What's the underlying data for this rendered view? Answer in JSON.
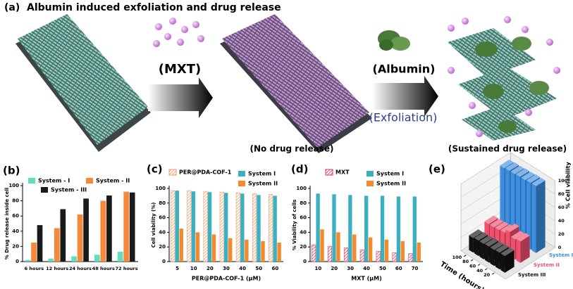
{
  "panel_a": {
    "label": "(a)",
    "title": "Albumin induced exfoliation and drug release",
    "drug_label": "(MXT)",
    "albumin_label": "(Albumin)",
    "exfoliation_label": "(Exfoliation)",
    "caption_middle": "(No drug release)",
    "caption_right": "(Sustained drug release)"
  },
  "chart_data": [
    {
      "type": "bar",
      "label": "(b)",
      "ylabel": "% Drug release inside cell",
      "categories": [
        "6 hours",
        "12 hours",
        "24 hours",
        "48 hours",
        "72 hours"
      ],
      "series": [
        {
          "name": "System - I",
          "color": "#5ee0c0",
          "values": [
            2,
            4,
            7,
            9,
            13
          ]
        },
        {
          "name": "System - II",
          "color": "#f7883a",
          "values": [
            25,
            44,
            62,
            80,
            92
          ]
        },
        {
          "name": "System - III",
          "color": "#1a1a1a",
          "values": [
            48,
            69,
            83,
            87,
            91
          ]
        }
      ],
      "ylim": [
        0,
        100
      ],
      "yticks": [
        0,
        20,
        40,
        60,
        80,
        100
      ]
    },
    {
      "type": "bar",
      "label": "(c)",
      "ylabel": "Cell viability (%)",
      "xlabel": "PER@PDA-COF-1 (μM)",
      "categories": [
        "5",
        "10",
        "20",
        "30",
        "40",
        "50",
        "60"
      ],
      "series": [
        {
          "name": "PER@PDA-COF-1",
          "color": "#f09a6a",
          "pattern": "hatch",
          "values": [
            97,
            97,
            96,
            95,
            94,
            93,
            92
          ]
        },
        {
          "name": "System I",
          "color": "#3bb0c0",
          "values": [
            97,
            96,
            95,
            94,
            93,
            91,
            90
          ]
        },
        {
          "name": "System II",
          "color": "#f58a2a",
          "values": [
            45,
            40,
            37,
            32,
            30,
            28,
            26
          ]
        }
      ],
      "ylim": [
        0,
        100
      ],
      "yticks": [
        0,
        20,
        40,
        60,
        80,
        100
      ]
    },
    {
      "type": "bar",
      "label": "(d)",
      "ylabel": "% Viability of cells",
      "xlabel": "MXT (μM)",
      "categories": [
        "10",
        "20",
        "30",
        "40",
        "50",
        "60",
        "70"
      ],
      "series": [
        {
          "name": "MXT",
          "color": "#d4385a",
          "pattern": "hatch",
          "values": [
            23,
            21,
            19,
            16,
            14,
            12,
            11
          ]
        },
        {
          "name": "System I",
          "color": "#3bb0c0",
          "values": [
            93,
            92,
            91,
            90,
            90,
            89,
            89
          ]
        },
        {
          "name": "System II",
          "color": "#f58a2a",
          "values": [
            44,
            40,
            37,
            33,
            30,
            28,
            26
          ]
        }
      ],
      "ylim": [
        0,
        100
      ],
      "yticks": [
        0,
        20,
        40,
        60,
        80,
        100
      ]
    },
    {
      "type": "bar3d",
      "label": "(e)",
      "xlabel": "Time (hours)",
      "ylabel": "% Cell viability",
      "x": [
        10,
        25,
        40,
        55,
        70,
        85,
        100
      ],
      "series": [
        {
          "name": "System I",
          "color": "#3c8fe0",
          "values": [
            100,
            100,
            99,
            99,
            98,
            98,
            97
          ]
        },
        {
          "name": "System II",
          "color": "#f0506e",
          "values": [
            32,
            30,
            36,
            30,
            29,
            28,
            28
          ]
        },
        {
          "name": "System III",
          "color": "#111111",
          "values": [
            25,
            25,
            24,
            24,
            23,
            23,
            22
          ]
        }
      ],
      "xlim": [
        0,
        110
      ],
      "xticks": [
        20,
        40,
        60,
        80,
        100
      ],
      "ylim": [
        0,
        100
      ],
      "yticks": [
        0,
        20,
        40,
        60,
        80,
        100
      ]
    }
  ]
}
